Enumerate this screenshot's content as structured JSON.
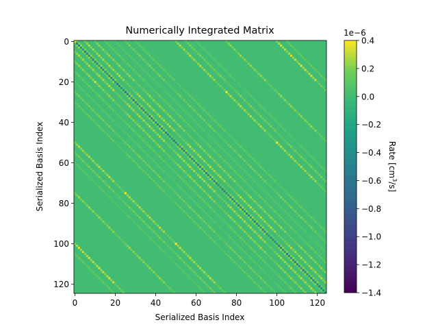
{
  "chart_data": {
    "type": "heatmap",
    "title": "Numerically Integrated Matrix",
    "xlabel": "Serialized Basis Index",
    "ylabel": "Serialized Basis Index",
    "matrix_size": 125,
    "xlim": [
      0,
      125
    ],
    "ylim": [
      125,
      0
    ],
    "x_ticks": [
      0,
      20,
      40,
      60,
      80,
      100,
      120
    ],
    "y_ticks": [
      0,
      20,
      40,
      60,
      80,
      100,
      120
    ],
    "background_value": 0.0,
    "block_size": 25,
    "colorbar": {
      "label": "Rate [cm³/s]",
      "label_parts": {
        "base": "Rate [cm",
        "sup": "3",
        "tail": "/s]"
      },
      "range": [
        -1.4,
        0.4
      ],
      "ticks": [
        0.4,
        0.2,
        0.0,
        -0.2,
        -0.4,
        -0.6,
        -0.8,
        -1.0,
        -1.2,
        -1.4
      ],
      "tick_labels": [
        "0.4",
        "0.2",
        "0.0",
        "−0.2",
        "−0.4",
        "−0.6",
        "−0.8",
        "−1.0",
        "−1.2",
        "−1.4"
      ],
      "offset_label": "1e−6",
      "colormap": "viridis"
    },
    "diagonal_band": {
      "offsets": [
        0
      ],
      "value": -0.55,
      "note": "main diagonal, negative rates"
    },
    "off_diagonal_bands": [
      {
        "offset": 1,
        "value": 0.25
      },
      {
        "offset": 5,
        "value": 0.3
      },
      {
        "offset": 10,
        "value": 0.25
      },
      {
        "offset": 15,
        "value": 0.15
      },
      {
        "offset": 20,
        "value": 0.1
      },
      {
        "offset": 25,
        "value": 0.2
      },
      {
        "offset": 30,
        "value": 0.15
      },
      {
        "offset": 50,
        "value": 0.3
      },
      {
        "offset": 55,
        "value": 0.2
      },
      {
        "offset": 60,
        "value": 0.1
      },
      {
        "offset": 75,
        "value": 0.25
      },
      {
        "offset": 100,
        "value": 0.35
      },
      {
        "offset": 105,
        "value": 0.15
      }
    ],
    "hot_spots": [
      {
        "row": 0,
        "col": 0,
        "value": 0.35
      },
      {
        "row": 25,
        "col": 75,
        "value": 0.4
      },
      {
        "row": 50,
        "col": 100,
        "value": 0.4
      },
      {
        "row": 75,
        "col": 25,
        "value": 0.4
      },
      {
        "row": 100,
        "col": 50,
        "value": 0.4
      },
      {
        "row": 20,
        "col": 10,
        "value": 0.35
      }
    ]
  }
}
